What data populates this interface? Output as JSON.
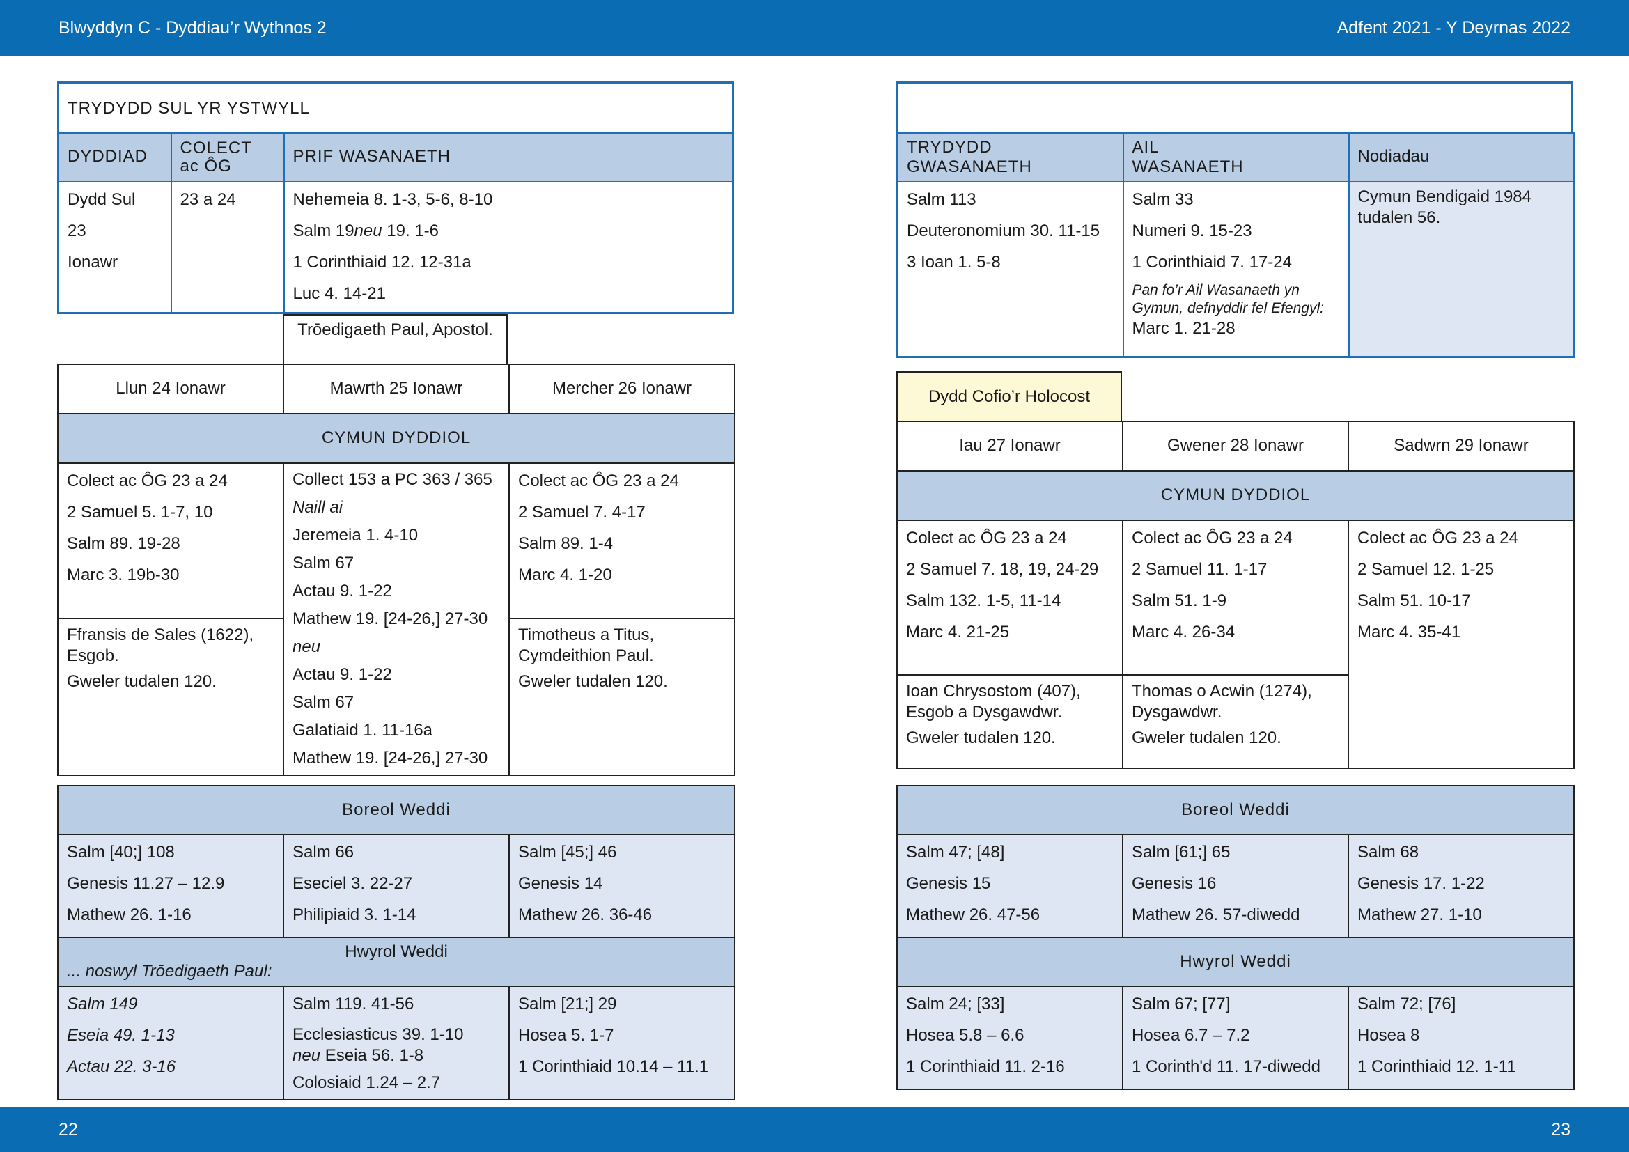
{
  "header": {
    "left": "Blwyddyn  C - Dyddiau’r Wythnos 2",
    "right": "Adfent 2021 - Y Deyrnas 2022"
  },
  "footer": {
    "left_page": "22",
    "right_page": "23"
  },
  "left_page": {
    "sunday": {
      "title": "TRYDYDD SUL YR YSTWYLL",
      "col_date": "DYDDIAD",
      "col_collect_l1": "COLECT",
      "col_collect_l2": "ac ÔG",
      "col_main": "PRIF WASANAETH",
      "date_lines": [
        "Dydd Sul",
        "23",
        "Ionawr"
      ],
      "collect": "23 a 24",
      "main_lines": [
        "Nehemeia 8. 1-3, 5-6, 8-10",
        "Salm 19 ",
        "neu",
        " 19. 1-6",
        "1 Corinthiaid 12. 12-31a",
        "Luc 4. 14-21"
      ]
    },
    "feast_label": "Trōedigaeth Paul, Apostol.",
    "days": [
      "Llun 24 Ionawr",
      "Mawrth 25 Ionawr",
      "Mercher 26 Ionawr"
    ],
    "cymun": "CYMUN DYDDIOL",
    "mon": [
      "Colect ac ÔG 23 a 24",
      "2 Samuel 5. 1-7, 10",
      "Salm 89. 19-28",
      "Marc 3. 19b-30"
    ],
    "tue": [
      "Collect 153 a PC 363 / 365",
      "Naill ai",
      "Jeremeia 1. 4-10",
      "Salm 67",
      "Actau 9. 1-22",
      "Mathew 19. [24-26,] 27-30",
      "neu",
      "Actau 9. 1-22",
      "Salm 67",
      "Galatiaid 1. 11-16a",
      "Mathew 19. [24-26,] 27-30"
    ],
    "wed": [
      "Colect ac ÔG 23 a 24",
      "2 Samuel 7. 4-17",
      "Salm 89. 1-4",
      "Marc 4. 1-20"
    ],
    "mon_saint": [
      "Ffransis de Sales (1622), Esgob.",
      "Gweler tudalen 120."
    ],
    "wed_saint": [
      "Timotheus a Titus, Cymdeithion Paul.",
      "Gweler tudalen 120."
    ],
    "boreol": "Boreol Weddi",
    "boreol_rows": [
      [
        "Salm [40;] 108",
        "Genesis 11.27 – 12.9",
        "Mathew 26. 1-16"
      ],
      [
        "Salm 66",
        "Eseciel 3. 22-27",
        "Philipiaid 3. 1-14"
      ],
      [
        "Salm [45;] 46",
        "Genesis 14",
        "Mathew 26. 36-46"
      ]
    ],
    "hwyrol": "Hwyrol Weddi",
    "hwyrol_note": "... noswyl Trōedigaeth Paul:",
    "hwyrol_mon": [
      "Salm 149",
      "Eseia 49. 1-13",
      "Actau 22. 3-16"
    ],
    "hwyrol_tue": [
      "Salm 119. 41-56",
      "Ecclesiasticus 39. 1-10",
      "neu",
      " Eseia 56. 1-8",
      "Colosiaid 1.24 – 2.7"
    ],
    "hwyrol_wed": [
      "Salm [21;] 29",
      "Hosea 5. 1-7",
      "1 Corinthiaid 10.14 – 11.1"
    ]
  },
  "right_page": {
    "cols": [
      "TRYDYDD GWASANAETH",
      "AIL WASANAETH",
      "Nodiadau"
    ],
    "col1_l1": "TRYDYDD",
    "col1_l2": "GWASANAETH",
    "col2_l1": "AIL",
    "col2_l2": "WASANAETH",
    "third": [
      "Salm 113",
      "Deuteronomium 30. 11-15",
      "3 Ioan 1. 5-8"
    ],
    "second": [
      "Salm 33",
      "Numeri 9. 15-23",
      "1 Corinthiaid 7. 17-24"
    ],
    "second_note": "Pan fo’r Ail Wasanaeth yn Gymun, defnyddir fel Efengyl:",
    "second_gospel": "Marc 1. 21-28",
    "notes": "Cymun Bendigaid 1984 tudalen 56.",
    "holocost": "Dydd Cofio’r Holocost",
    "days": [
      "Iau 27 Ionawr",
      "Gwener 28 Ionawr",
      "Sadwrn 29 Ionawr"
    ],
    "cymun": "CYMUN DYDDIOL",
    "thu": [
      "Colect ac ÔG 23 a 24",
      "2 Samuel 7. 18, 19, 24-29",
      "Salm 132. 1-5, 11-14",
      "Marc 4. 21-25"
    ],
    "fri": [
      "Colect ac ÔG 23 a 24",
      "2 Samuel 11. 1-17",
      "Salm 51. 1-9",
      "Marc 4. 26-34"
    ],
    "sat": [
      "Colect ac ÔG 23 a 24",
      "2 Samuel 12. 1-25",
      "Salm 51. 10-17",
      "Marc 4. 35-41"
    ],
    "thu_saint": [
      "Ioan Chrysostom (407), Esgob a Dysgawdwr.",
      "Gweler tudalen 120."
    ],
    "fri_saint": [
      "Thomas o Acwin (1274), Dysgawdwr.",
      "Gweler tudalen 120."
    ],
    "boreol": "Boreol Weddi",
    "boreol_rows": [
      [
        "Salm 47; [48]",
        "Genesis 15",
        "Mathew 26. 47-56"
      ],
      [
        "Salm [61;] 65",
        "Genesis 16",
        "Mathew 26. 57-diwedd"
      ],
      [
        "Salm 68",
        "Genesis 17. 1-22",
        "Mathew 27. 1-10"
      ]
    ],
    "hwyrol": "Hwyrol Weddi",
    "hwyrol_rows": [
      [
        "Salm 24; [33]",
        "Hosea 5.8 – 6.6",
        "1 Corinthiaid 11. 2-16"
      ],
      [
        "Salm 67; [77]",
        "Hosea 6.7 – 7.2",
        "1 Corinth'd 11. 17-diwedd"
      ],
      [
        "Salm 72; [76]",
        "Hosea 8",
        "1 Corinthiaid 12. 1-11"
      ]
    ]
  }
}
